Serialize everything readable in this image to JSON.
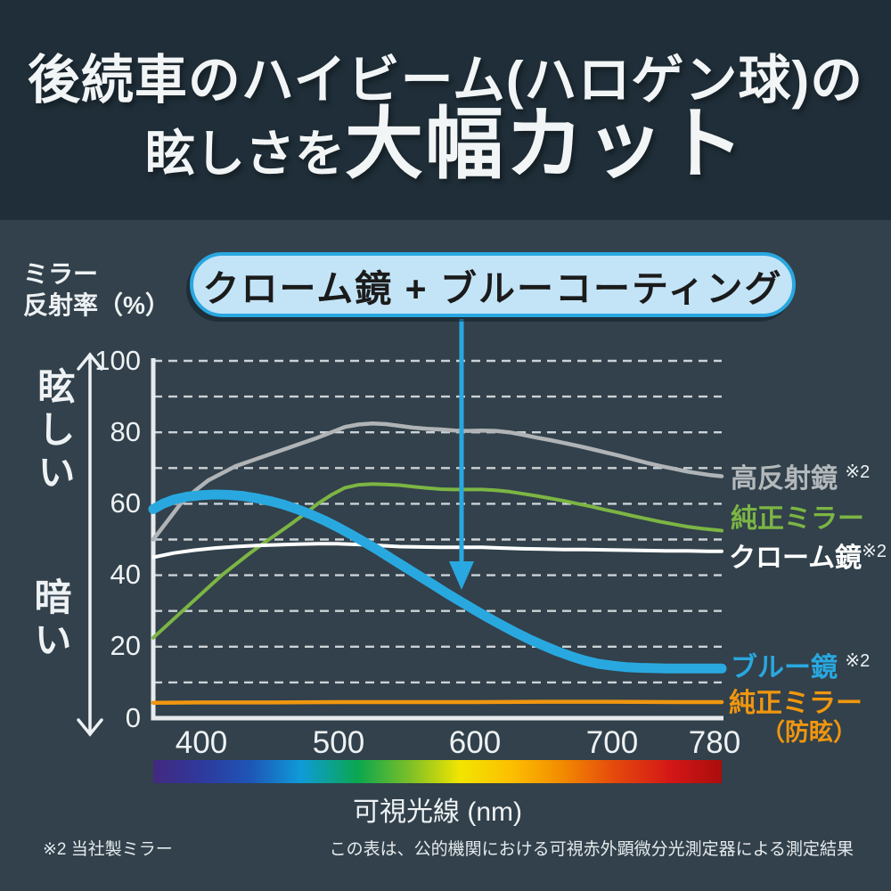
{
  "header": {
    "title_line1": "後続車のハイビーム(ハロゲン球)の",
    "title_line2_small": "眩しさを",
    "title_line2_large": "大幅カット"
  },
  "callout": {
    "label": "クローム鏡 + ブルーコーティング"
  },
  "y_axis": {
    "title_line1": "ミラー",
    "title_line2": "反射率（%）",
    "top_label": "眩しい",
    "bottom_label": "暗い",
    "ticks": [
      "100",
      "80",
      "60",
      "40",
      "20",
      "0"
    ]
  },
  "x_axis": {
    "ticks": [
      "400",
      "500",
      "600",
      "700",
      "780"
    ],
    "label": "可視光線 (nm)"
  },
  "footnotes": {
    "mark": "※2",
    "left": "※2 当社製ミラー",
    "right": "この表は、公的機関における可視赤外顕微分光測定器による測定結果"
  },
  "chart_data": {
    "type": "line",
    "title": "後続車のハイビーム(ハロゲン球)の眩しさを大幅カット",
    "xlabel": "可視光線 (nm)",
    "ylabel": "ミラー反射率（%）",
    "xlim": [
      365,
      780
    ],
    "ylim": [
      0,
      100
    ],
    "grid": "dashed horizontal every 10",
    "legend_position": "right of each line end",
    "annotation": {
      "text": "クローム鏡 + ブルーコーティング",
      "arrow_points_to_series": "ブルー鏡",
      "arrow_points_to": {
        "x": 590,
        "y": 38
      }
    },
    "series": [
      {
        "key": "high-reflective-mirror",
        "name": "高反射鏡",
        "label": "高反射鏡",
        "has_footnote_mark": true,
        "color": "#b0b4b6",
        "width": 4.5,
        "z": 1,
        "points": [
          [
            365,
            50
          ],
          [
            375,
            55
          ],
          [
            385,
            60
          ],
          [
            395,
            63.5
          ],
          [
            405,
            66.5
          ],
          [
            415,
            68.5
          ],
          [
            425,
            70.5
          ],
          [
            440,
            72.5
          ],
          [
            455,
            74.5
          ],
          [
            470,
            76.5
          ],
          [
            485,
            78.5
          ],
          [
            495,
            80
          ],
          [
            505,
            81.5
          ],
          [
            515,
            82.2
          ],
          [
            525,
            82.5
          ],
          [
            535,
            82.3
          ],
          [
            545,
            81.8
          ],
          [
            555,
            81.3
          ],
          [
            565,
            81
          ],
          [
            575,
            80.8
          ],
          [
            585,
            80.5
          ],
          [
            595,
            80.4
          ],
          [
            605,
            80.5
          ],
          [
            615,
            80.4
          ],
          [
            625,
            80
          ],
          [
            635,
            79.3
          ],
          [
            645,
            78.5
          ],
          [
            655,
            77.8
          ],
          [
            665,
            77
          ],
          [
            675,
            76.2
          ],
          [
            685,
            75.3
          ],
          [
            695,
            74.4
          ],
          [
            705,
            73.5
          ],
          [
            715,
            72.5
          ],
          [
            725,
            71.5
          ],
          [
            735,
            70.6
          ],
          [
            745,
            69.8
          ],
          [
            755,
            69
          ],
          [
            765,
            68.4
          ],
          [
            772,
            68
          ],
          [
            780,
            67.7
          ]
        ]
      },
      {
        "key": "genuine-mirror",
        "name": "純正ミラー",
        "label": "純正ミラー",
        "has_footnote_mark": false,
        "color": "#7cb544",
        "width": 4,
        "z": 2,
        "points": [
          [
            365,
            22.5
          ],
          [
            375,
            26
          ],
          [
            385,
            29.5
          ],
          [
            395,
            33
          ],
          [
            405,
            36.5
          ],
          [
            415,
            40
          ],
          [
            425,
            43
          ],
          [
            435,
            46
          ],
          [
            445,
            48.8
          ],
          [
            455,
            51.5
          ],
          [
            465,
            54.2
          ],
          [
            475,
            57
          ],
          [
            485,
            60
          ],
          [
            495,
            62.5
          ],
          [
            505,
            64.5
          ],
          [
            515,
            65.3
          ],
          [
            525,
            65.5
          ],
          [
            535,
            65.4
          ],
          [
            545,
            65.2
          ],
          [
            555,
            64.8
          ],
          [
            565,
            64.4
          ],
          [
            575,
            64.1
          ],
          [
            585,
            64
          ],
          [
            595,
            64
          ],
          [
            605,
            64
          ],
          [
            615,
            63.8
          ],
          [
            625,
            63.4
          ],
          [
            635,
            62.8
          ],
          [
            645,
            62.2
          ],
          [
            655,
            61.5
          ],
          [
            665,
            60.8
          ],
          [
            675,
            60
          ],
          [
            685,
            59.2
          ],
          [
            695,
            58.3
          ],
          [
            705,
            57.5
          ],
          [
            715,
            56.6
          ],
          [
            725,
            55.8
          ],
          [
            735,
            55
          ],
          [
            745,
            54.3
          ],
          [
            755,
            53.6
          ],
          [
            765,
            53.1
          ],
          [
            772,
            52.8
          ],
          [
            780,
            52.5
          ]
        ]
      },
      {
        "key": "chrome-mirror",
        "name": "クローム鏡",
        "label": "クローム鏡",
        "has_footnote_mark": true,
        "color": "#ffffff",
        "width": 4,
        "z": 3,
        "points": [
          [
            365,
            45
          ],
          [
            380,
            46.2
          ],
          [
            395,
            47
          ],
          [
            410,
            47.6
          ],
          [
            425,
            48
          ],
          [
            440,
            48.3
          ],
          [
            455,
            48.5
          ],
          [
            470,
            48.7
          ],
          [
            485,
            48.8
          ],
          [
            500,
            48.8
          ],
          [
            515,
            48.6
          ],
          [
            530,
            48.3
          ],
          [
            545,
            48
          ],
          [
            560,
            47.9
          ],
          [
            575,
            47.8
          ],
          [
            590,
            47.8
          ],
          [
            605,
            47.8
          ],
          [
            620,
            47.6
          ],
          [
            635,
            47.4
          ],
          [
            650,
            47.3
          ],
          [
            665,
            47.2
          ],
          [
            680,
            47.2
          ],
          [
            695,
            47.1
          ],
          [
            710,
            47
          ],
          [
            725,
            46.9
          ],
          [
            740,
            46.8
          ],
          [
            755,
            46.8
          ],
          [
            770,
            46.7
          ],
          [
            780,
            46.7
          ]
        ]
      },
      {
        "key": "blue-mirror",
        "name": "ブルー鏡",
        "label": "ブルー鏡",
        "has_footnote_mark": true,
        "color": "#29a8e0",
        "width": 11,
        "z": 5,
        "points": [
          [
            365,
            58.5
          ],
          [
            372,
            60
          ],
          [
            380,
            61.2
          ],
          [
            390,
            62
          ],
          [
            400,
            62.4
          ],
          [
            410,
            62.6
          ],
          [
            420,
            62.5
          ],
          [
            430,
            62.2
          ],
          [
            440,
            61.6
          ],
          [
            450,
            60.8
          ],
          [
            460,
            59.8
          ],
          [
            470,
            58.5
          ],
          [
            480,
            57
          ],
          [
            490,
            55.3
          ],
          [
            500,
            53.4
          ],
          [
            510,
            51.3
          ],
          [
            520,
            49.1
          ],
          [
            530,
            46.8
          ],
          [
            540,
            44.4
          ],
          [
            550,
            42
          ],
          [
            560,
            39.6
          ],
          [
            570,
            37.2
          ],
          [
            580,
            34.8
          ],
          [
            590,
            32.5
          ],
          [
            600,
            30.2
          ],
          [
            610,
            28
          ],
          [
            620,
            25.9
          ],
          [
            630,
            23.9
          ],
          [
            640,
            22
          ],
          [
            650,
            20.3
          ],
          [
            660,
            18.7
          ],
          [
            670,
            17.3
          ],
          [
            680,
            16.1
          ],
          [
            690,
            15.2
          ],
          [
            700,
            14.7
          ],
          [
            710,
            14.3
          ],
          [
            720,
            14.1
          ],
          [
            730,
            14
          ],
          [
            740,
            13.9
          ],
          [
            750,
            13.9
          ],
          [
            760,
            13.9
          ],
          [
            770,
            13.9
          ],
          [
            780,
            13.9
          ]
        ]
      },
      {
        "key": "genuine-mirror-antiglare",
        "name": "純正ミラー（防眩）",
        "label": "純正ミラー",
        "label2": "（防眩）",
        "has_footnote_mark": false,
        "color": "#f0960f",
        "width": 4.5,
        "z": 4,
        "points": [
          [
            365,
            4.3
          ],
          [
            400,
            4.4
          ],
          [
            450,
            4.4
          ],
          [
            500,
            4.5
          ],
          [
            550,
            4.5
          ],
          [
            600,
            4.5
          ],
          [
            650,
            4.6
          ],
          [
            700,
            4.6
          ],
          [
            750,
            4.5
          ],
          [
            780,
            4.5
          ]
        ]
      }
    ]
  }
}
